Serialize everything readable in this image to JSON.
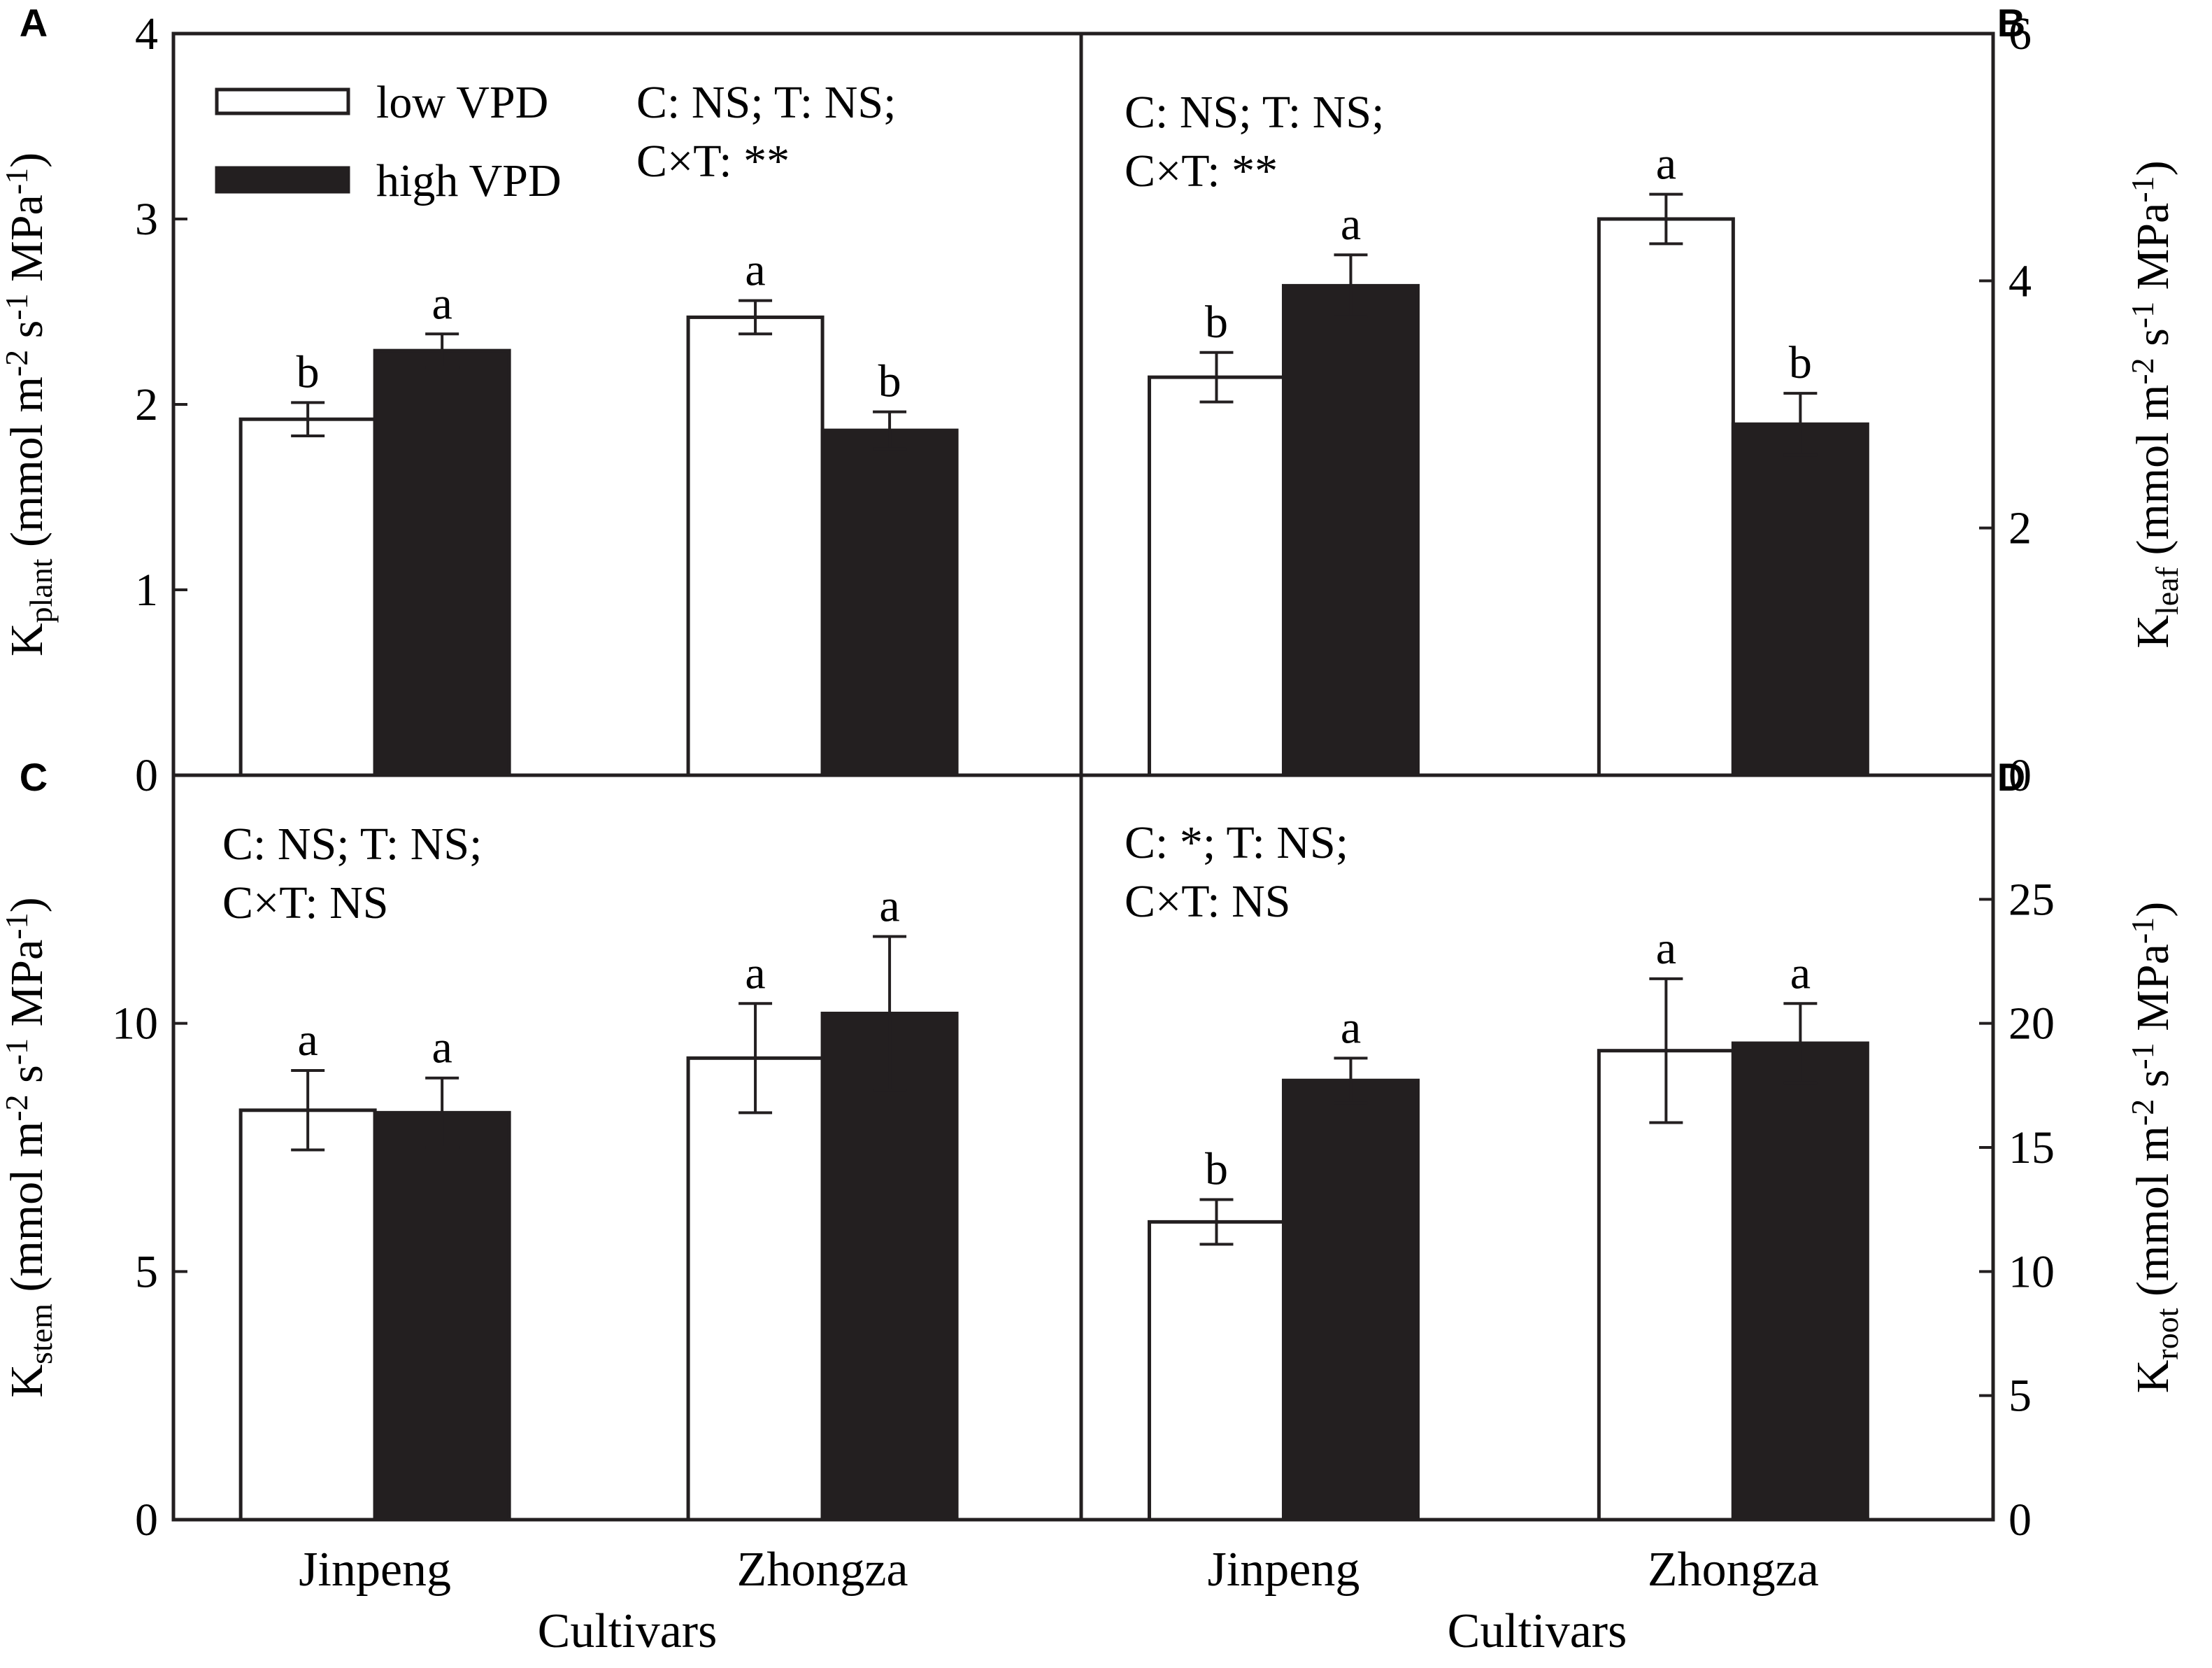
{
  "figure": {
    "panel_letters": [
      "A",
      "B",
      "C",
      "D"
    ],
    "x_axis_title": "Cultivars",
    "categories": [
      "Jinpeng",
      "Zhongza"
    ]
  },
  "legend": {
    "items": [
      {
        "label": "low VPD",
        "color": "#ffffff"
      },
      {
        "label": "high VPD",
        "color": "#231f20"
      }
    ]
  },
  "chart_data": [
    {
      "type": "bar",
      "panel": "A",
      "ylabel": {
        "main": "K",
        "sub": "plant",
        "units_pre": " (mmol m",
        "exp1": "-2",
        "mid": " s",
        "exp2": "-1",
        "units_post": " MPa",
        "exp3": "-1",
        "close": ")"
      },
      "ylim": [
        0,
        4
      ],
      "yticks": [
        0,
        1,
        2,
        3,
        4
      ],
      "y_axis_side": "left",
      "categories": [
        "Jinpeng",
        "Zhongza"
      ],
      "series": [
        {
          "name": "low VPD",
          "values": [
            1.92,
            2.47
          ],
          "errors": [
            0.09,
            0.09
          ],
          "letters": [
            "b",
            "a"
          ]
        },
        {
          "name": "high VPD",
          "values": [
            2.29,
            1.86
          ],
          "errors": [
            0.09,
            0.1
          ],
          "letters": [
            "a",
            "b"
          ]
        }
      ],
      "stats_lines": [
        "C: NS; T: NS;",
        "C×T: **"
      ]
    },
    {
      "type": "bar",
      "panel": "B",
      "ylabel": {
        "main": "K",
        "sub": "leaf",
        "units_pre": " (mmol m",
        "exp1": "-2",
        "mid": " s",
        "exp2": "-1",
        "units_post": " MPa",
        "exp3": "-1",
        "close": ")"
      },
      "ylim": [
        0,
        6
      ],
      "yticks": [
        0,
        2,
        4,
        6
      ],
      "y_axis_side": "right",
      "categories": [
        "Jinpeng",
        "Zhongza"
      ],
      "series": [
        {
          "name": "low VPD",
          "values": [
            3.22,
            4.5
          ],
          "errors": [
            0.2,
            0.2
          ],
          "letters": [
            "b",
            "a"
          ]
        },
        {
          "name": "high VPD",
          "values": [
            3.96,
            2.84
          ],
          "errors": [
            0.25,
            0.25
          ],
          "letters": [
            "a",
            "b"
          ]
        }
      ],
      "stats_lines": [
        "C: NS; T: NS;",
        "C×T: **"
      ]
    },
    {
      "type": "bar",
      "panel": "C",
      "ylabel": {
        "main": "K",
        "sub": "stem",
        "units_pre": " (mmol m",
        "exp1": "-2",
        "mid": " s",
        "exp2": "-1",
        "units_post": " MPa",
        "exp3": "-1",
        "close": ")"
      },
      "ylim": [
        0,
        15
      ],
      "yticks": [
        0,
        5,
        10
      ],
      "y_axis_side": "left",
      "categories": [
        "Jinpeng",
        "Zhongza"
      ],
      "series": [
        {
          "name": "low VPD",
          "values": [
            8.25,
            9.3
          ],
          "errors": [
            0.8,
            1.1
          ],
          "letters": [
            "a",
            "a"
          ]
        },
        {
          "name": "high VPD",
          "values": [
            8.2,
            10.2
          ],
          "errors": [
            0.7,
            1.55
          ],
          "letters": [
            "a",
            "a"
          ]
        }
      ],
      "stats_lines": [
        "C: NS; T: NS;",
        "C×T: NS"
      ]
    },
    {
      "type": "bar",
      "panel": "D",
      "ylabel": {
        "main": "K",
        "sub": "root",
        "units_pre": " (mmol m",
        "exp1": "-2",
        "mid": " s",
        "exp2": "-1",
        "units_post": " MPa",
        "exp3": "-1",
        "close": ")"
      },
      "ylim": [
        0,
        30
      ],
      "yticks": [
        0,
        5,
        10,
        15,
        20,
        25
      ],
      "y_axis_side": "right",
      "categories": [
        "Jinpeng",
        "Zhongza"
      ],
      "series": [
        {
          "name": "low VPD",
          "values": [
            12.0,
            18.9
          ],
          "errors": [
            0.9,
            2.9
          ],
          "letters": [
            "b",
            "a"
          ]
        },
        {
          "name": "high VPD",
          "values": [
            17.7,
            19.2
          ],
          "errors": [
            0.9,
            1.6
          ],
          "letters": [
            "a",
            "a"
          ]
        }
      ],
      "stats_lines": [
        "C: *; T: NS;",
        "C×T: NS"
      ]
    }
  ]
}
